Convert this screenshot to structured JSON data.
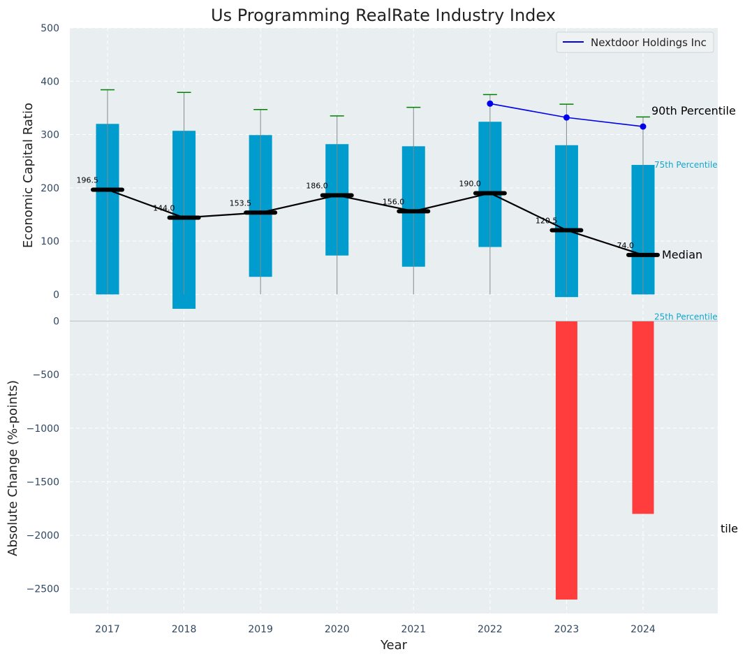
{
  "chart_data": {
    "title": "Us Programming RealRate Industry Index",
    "xlabel": "Year",
    "categories": [
      "2017",
      "2018",
      "2019",
      "2020",
      "2021",
      "2022",
      "2023",
      "2024"
    ],
    "top_panel": {
      "type": "box-range",
      "ylabel": "Economic Capital Ratio",
      "ylim": [
        -50,
        500
      ],
      "yticks": [
        0,
        100,
        200,
        300,
        400,
        500
      ],
      "p25": [
        0,
        -27,
        33,
        73,
        52,
        89,
        -5,
        0
      ],
      "p75": [
        320,
        307,
        299,
        282,
        278,
        324,
        280,
        243
      ],
      "whisker_low": [
        0,
        0,
        0,
        0,
        0,
        0,
        0,
        0
      ],
      "whisker_high": [
        384,
        379,
        347,
        335,
        351,
        375,
        357,
        333
      ],
      "median": [
        196.5,
        144.0,
        153.5,
        186.0,
        156.0,
        190.0,
        120.5,
        74.0
      ],
      "median_labels": [
        "196.5",
        "144.0",
        "153.5",
        "186.0",
        "156.0",
        "190.0",
        "120.5",
        "74.0"
      ],
      "company_series": {
        "name": "Nextdoor Holdings Inc",
        "years": [
          "2022",
          "2023",
          "2024"
        ],
        "values": [
          358,
          332,
          315
        ],
        "color": "#0000ee"
      },
      "annotations": {
        "p90": "90th Percentile",
        "p75": "75th Percentile",
        "median": "Median",
        "p25": "25th Percentile"
      }
    },
    "bottom_panel": {
      "type": "bar",
      "ylabel": "Absolute Change (%-points)",
      "ylim": [
        -2730,
        0
      ],
      "yticks": [
        0,
        -500,
        -1000,
        -1500,
        -2000,
        -2500
      ],
      "ytick_labels": [
        "0",
        "−500",
        "−1000",
        "−1500",
        "−2000",
        "−2500"
      ],
      "values": [
        0,
        0,
        0,
        0,
        0,
        0,
        -2600,
        -1800
      ],
      "clipped_label": "tile"
    },
    "colors": {
      "box": "#009ccd",
      "neg_bar": "#ff3d3d",
      "whisker_cap": "#008000",
      "median_line": "#000000",
      "panel_bg": "#e9eef0",
      "p_label": "#12a6cc"
    }
  }
}
